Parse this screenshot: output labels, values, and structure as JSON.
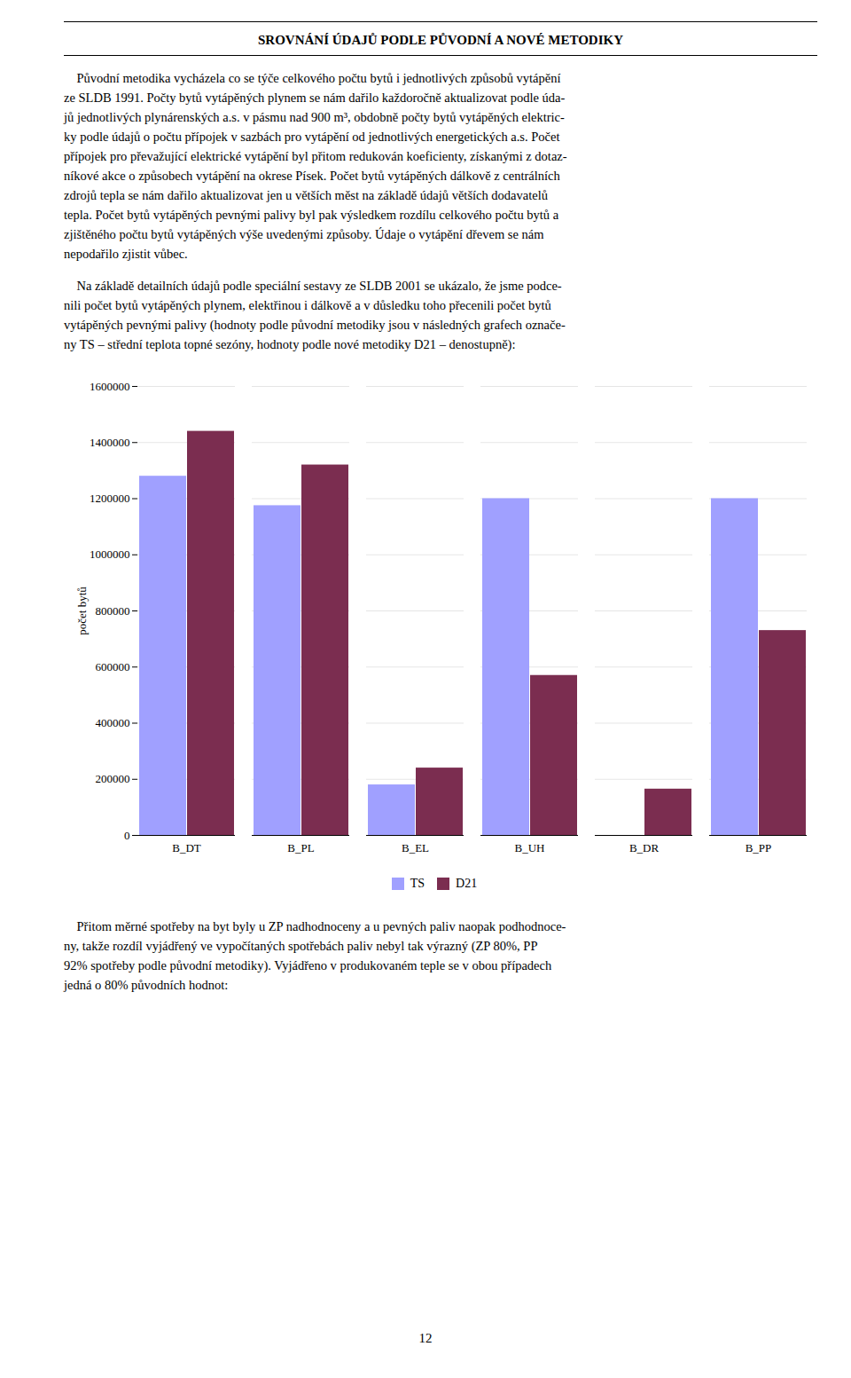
{
  "chart_data": {
    "type": "bar",
    "title": "SROVNÁNÍ ÚDAJŮ PODLE PŮVODNÍ A NOVÉ METODIKY",
    "categories": [
      "B_DT",
      "B_PL",
      "B_EL",
      "B_UH",
      "B_DR",
      "B_PP"
    ],
    "series": [
      {
        "name": "TS",
        "color": "#a0a0ff",
        "values": [
          1280000,
          1175000,
          180000,
          1200000,
          0,
          1200000
        ]
      },
      {
        "name": "D21",
        "color": "#7b2d50",
        "values": [
          1440000,
          1320000,
          240000,
          570000,
          165000,
          730000
        ]
      }
    ],
    "ylabel": "počet bytů",
    "ylim": [
      0,
      1600000
    ],
    "yticks": [
      0,
      200000,
      400000,
      600000,
      800000,
      1000000,
      1200000,
      1400000,
      1600000
    ],
    "grid": true,
    "legend": "bottom",
    "annotations": [
      [
        "    Původní metodika vycházela co se týče celkového počtu bytů i jednotlivých způsobů vytápění",
        "ze SLDB 1991. Počty bytů vytápěných plynem se nám dařilo každoročně aktualizovat podle úda-",
        "jů jednotlivých plynárenských a.s. v pásmu nad 900 m³, obdobně počty bytů vytápěných elektric-",
        "ky podle údajů o počtu přípojek v sazbách pro vytápění od jednotlivých energetických a.s. Počet",
        "přípojek pro převažující elektrické vytápění byl přitom redukován koeficienty, získanými z dotaz-",
        "níkové akce o způsobech vytápění na okrese Písek. Počet bytů vytápěných dálkově z centrálních",
        "zdrojů tepla se nám dařilo aktualizovat jen u větších měst na základě údajů větších dodavatelů",
        "tepla. Počet bytů vytápěných pevnými palivy byl pak výsledkem rozdílu celkového počtu bytů a",
        "zjištěného počtu bytů vytápěných výše uvedenými způsoby. Údaje o vytápění dřevem se nám",
        "nepodařilo zjistit vůbec."
      ],
      [
        "    Na základě detailních údajů podle speciální sestavy ze SLDB 2001 se ukázalo, že jsme podce-",
        "nili počet bytů vytápěných plynem, elektřinou i dálkově a v důsledku toho přecenili počet bytů",
        "vytápěných pevnými palivy (hodnoty podle původní metodiky jsou v následných grafech označe-",
        "ny TS – střední teplota topné sezóny, hodnoty podle nové metodiky D21 – denostupně):"
      ],
      [
        "    Přitom měrné spotřeby na byt byly u ZP nadhodnoceny a u pevných paliv naopak podhodnoce-",
        "ny, takže rozdíl vyjádřený ve vypočítaných spotřebách paliv nebyl tak výrazný (ZP 80%, PP",
        "92% spotřeby podle původní metodiky). Vyjádřeno v produkovaném teple se v obou případech",
        "jedná o 80% původních hodnot:"
      ],
      [
        "12"
      ]
    ]
  }
}
